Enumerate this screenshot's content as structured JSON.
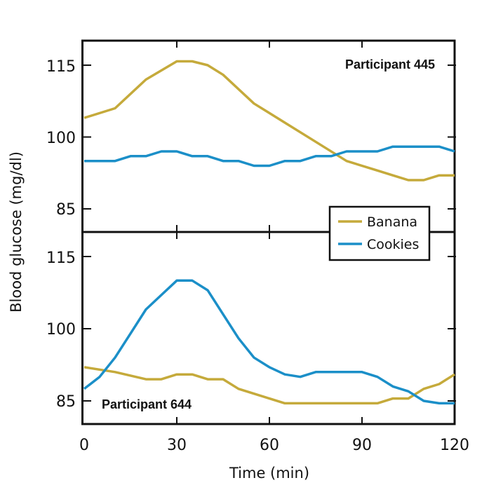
{
  "chart_data": {
    "type": "line",
    "xlabel": "Time (min)",
    "ylabel": "Blood glucose (mg/dl)",
    "xlim": [
      0,
      120
    ],
    "x_ticks": [
      "0",
      "30",
      "60",
      "90",
      "120"
    ],
    "y_ticks": [
      "85",
      "100",
      "115"
    ],
    "grid": false,
    "legend": {
      "placement": "center-right",
      "entries": [
        "Banana",
        "Cookies"
      ]
    },
    "colors": {
      "Banana": "#c5aa3b",
      "Cookies": "#1b8fc8"
    },
    "panels": [
      {
        "label": "Participant 445",
        "ylim": [
          80,
          121
        ],
        "series": [
          {
            "name": "Banana",
            "x": [
              0,
              10,
              20,
              30,
              35,
              40,
              45,
              55,
              65,
              75,
              85,
              95,
              100,
              105,
              110,
              115,
              120
            ],
            "y": [
              104,
              106,
              112,
              115.8,
              115.8,
              115,
              113,
              107,
              103,
              99,
              95,
              93,
              92,
              91,
              91,
              92,
              92
            ]
          },
          {
            "name": "Cookies",
            "x": [
              0,
              10,
              15,
              20,
              25,
              30,
              35,
              40,
              45,
              50,
              55,
              60,
              65,
              70,
              75,
              80,
              85,
              90,
              95,
              100,
              105,
              110,
              115,
              120
            ],
            "y": [
              95,
              95,
              96,
              96,
              97,
              97,
              96,
              96,
              95,
              95,
              94,
              94,
              95,
              95,
              96,
              96,
              97,
              97,
              97,
              98,
              98,
              98,
              98,
              97
            ]
          }
        ]
      },
      {
        "label": "Participant 644",
        "ylim": [
          80,
          120
        ],
        "series": [
          {
            "name": "Banana",
            "x": [
              0,
              10,
              20,
              25,
              30,
              35,
              40,
              45,
              50,
              55,
              60,
              65,
              70,
              75,
              80,
              85,
              90,
              95,
              100,
              105,
              110,
              115,
              120
            ],
            "y": [
              92,
              91,
              89.5,
              89.5,
              90.5,
              90.5,
              89.5,
              89.5,
              87.5,
              86.5,
              85.5,
              84.5,
              84.5,
              84.5,
              84.5,
              84.5,
              84.5,
              84.5,
              85.5,
              85.5,
              87.5,
              88.5,
              90.5
            ]
          },
          {
            "name": "Cookies",
            "x": [
              0,
              5,
              10,
              15,
              20,
              25,
              30,
              35,
              40,
              45,
              50,
              55,
              60,
              65,
              70,
              75,
              80,
              85,
              90,
              95,
              100,
              105,
              110,
              115,
              120
            ],
            "y": [
              87.5,
              90,
              94,
              99,
              104,
              107,
              110,
              110,
              108,
              103,
              98,
              94,
              92,
              90.5,
              90,
              91,
              91,
              91,
              91,
              90,
              88,
              87,
              85,
              84.5,
              84.5
            ]
          }
        ]
      }
    ]
  }
}
